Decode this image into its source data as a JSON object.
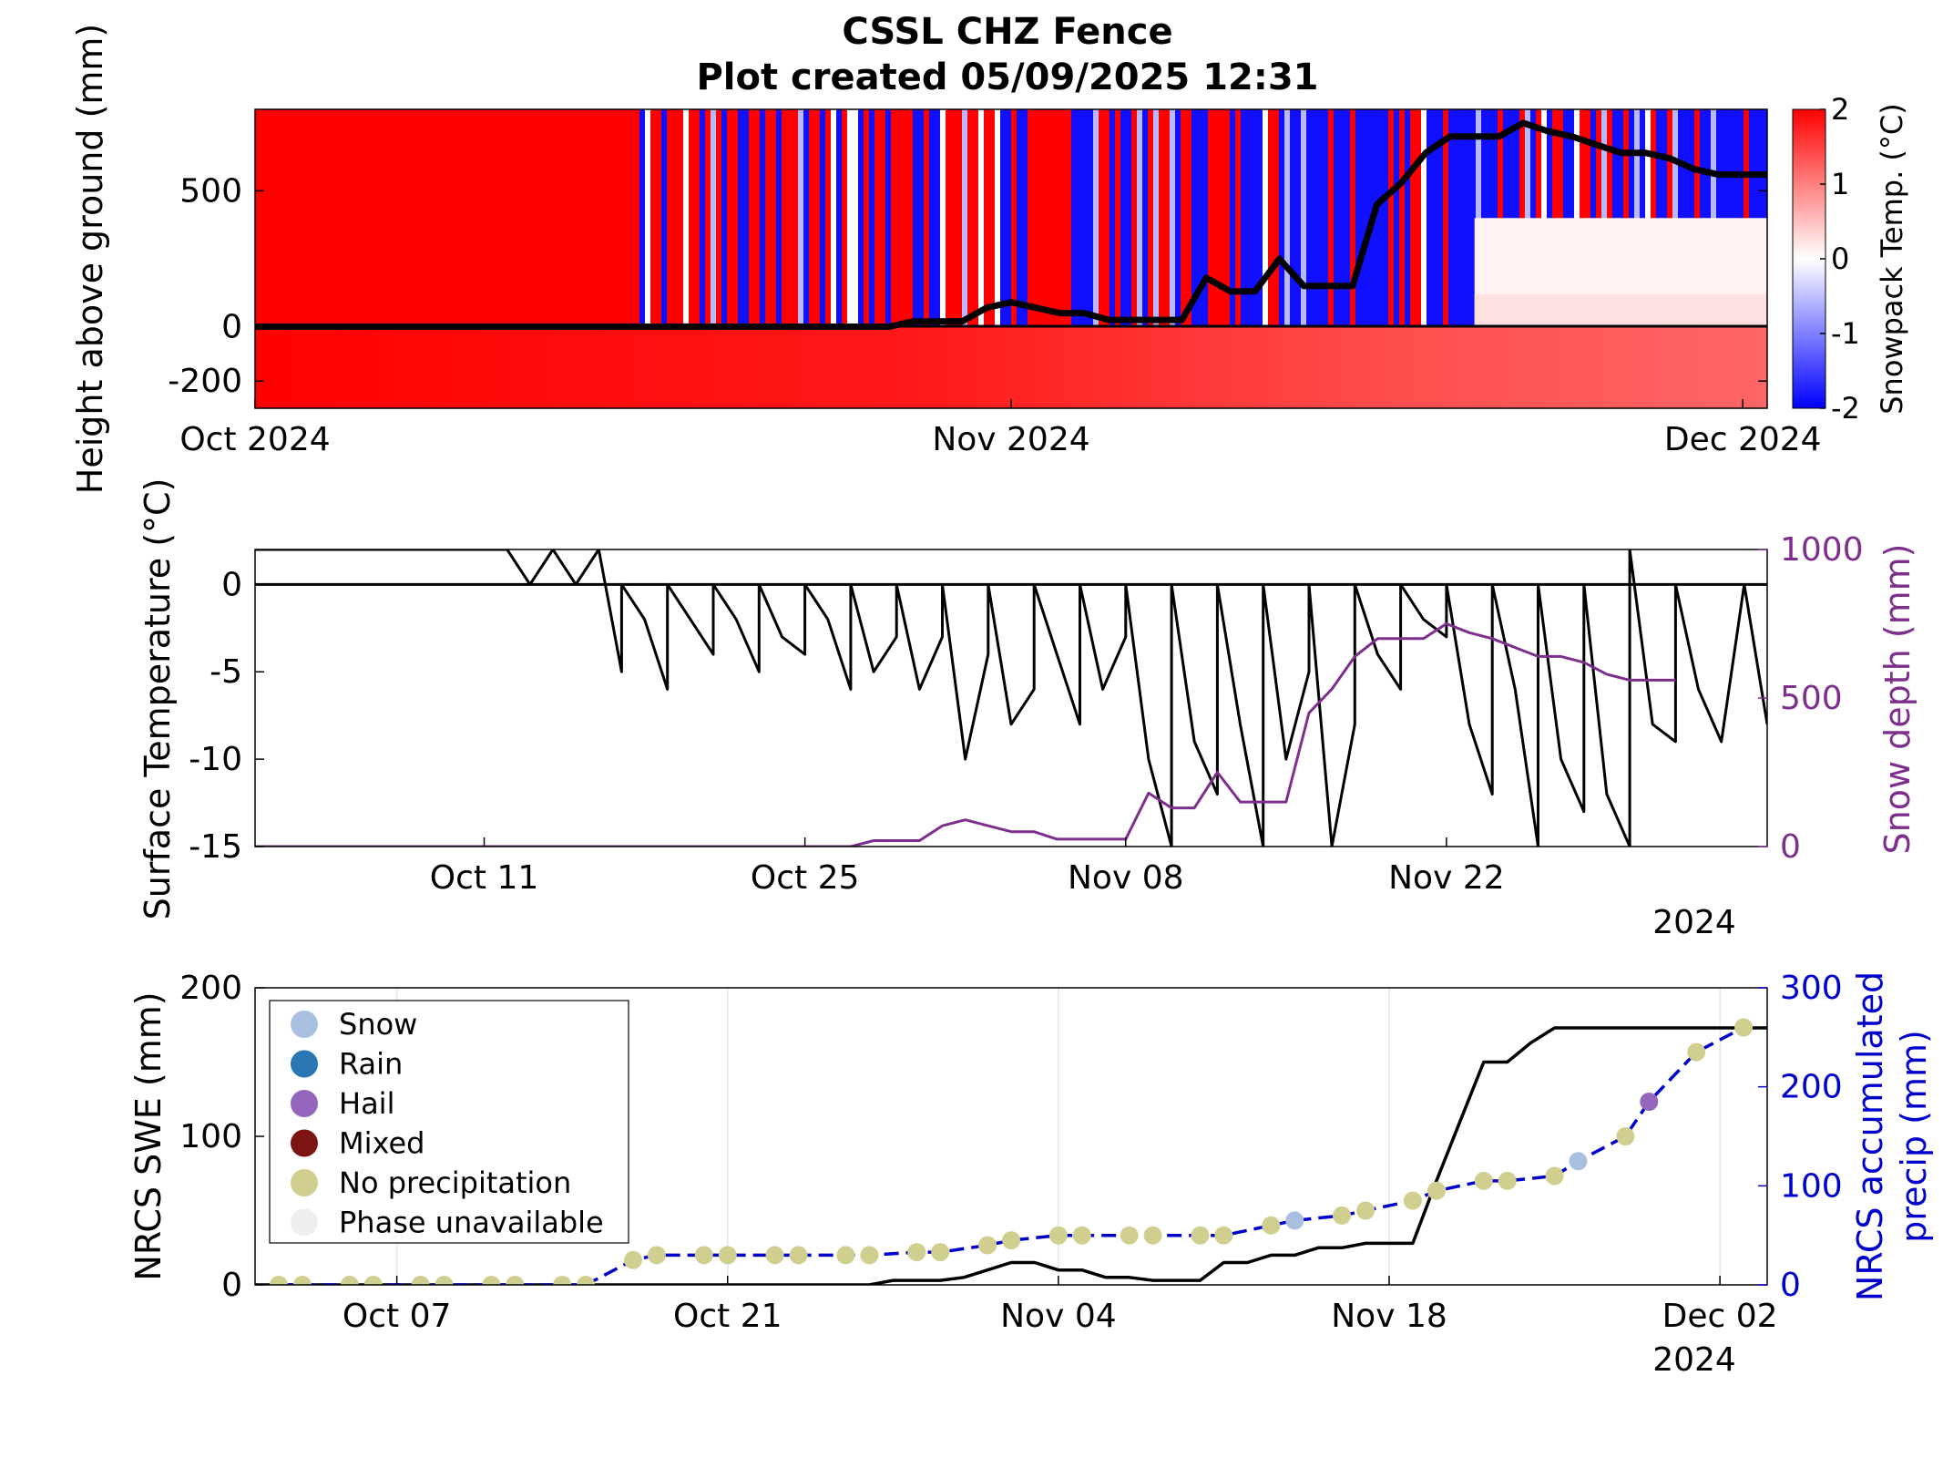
{
  "title": {
    "line1": "CSSL CHZ Fence",
    "line2": "Plot created 05/09/2025 12:31"
  },
  "chart_data": [
    {
      "type": "heatmap",
      "ylabel": "Height above ground (mm)",
      "yticks": [
        500,
        0,
        -200
      ],
      "ylim": [
        -300,
        800
      ],
      "xticks": [
        "Oct 2024",
        "Nov 2024",
        "Dec 2024"
      ],
      "xlim": [
        "2024-10-01",
        "2024-12-02"
      ],
      "colorbar": {
        "label": "Snowpack Temp. (°C)",
        "ticks": [
          2,
          1,
          0,
          -1,
          -2
        ],
        "range": [
          -2,
          2
        ],
        "colors": [
          "#0000ff",
          "#ffffff",
          "#ff0000"
        ]
      },
      "snow_depth_line": {
        "x": [
          "2024-10-01",
          "2024-10-27",
          "2024-10-28",
          "2024-10-30",
          "2024-10-31",
          "2024-11-01",
          "2024-11-02",
          "2024-11-03",
          "2024-11-04",
          "2024-11-05",
          "2024-11-06",
          "2024-11-07",
          "2024-11-08",
          "2024-11-09",
          "2024-11-10",
          "2024-11-11",
          "2024-11-12",
          "2024-11-13",
          "2024-11-14",
          "2024-11-15",
          "2024-11-16",
          "2024-11-17",
          "2024-11-18",
          "2024-11-19",
          "2024-11-20",
          "2024-11-21",
          "2024-11-22",
          "2024-11-23",
          "2024-11-24",
          "2024-11-25",
          "2024-11-26",
          "2024-11-27",
          "2024-11-28",
          "2024-11-29",
          "2024-11-30",
          "2024-12-01",
          "2024-12-02"
        ],
        "y": [
          0,
          0,
          20,
          20,
          70,
          90,
          70,
          50,
          50,
          25,
          25,
          25,
          25,
          180,
          130,
          130,
          250,
          150,
          150,
          150,
          450,
          530,
          640,
          700,
          700,
          700,
          750,
          720,
          700,
          670,
          640,
          640,
          620,
          580,
          560,
          560,
          560
        ]
      }
    },
    {
      "type": "line",
      "ylabel": "Surface Temperature (°C)",
      "y2label": "Snow depth (mm)",
      "yticks": [
        0,
        -5,
        -10,
        -15
      ],
      "ylim": [
        -15,
        2
      ],
      "y2ticks": [
        1000,
        500,
        0
      ],
      "y2lim": [
        0,
        1000
      ],
      "xticks": [
        "Oct 11",
        "Oct 25",
        "Nov 08",
        "Nov 22"
      ],
      "xlim": [
        "2024-10-01",
        "2024-12-06"
      ],
      "year_label": "2024",
      "colors": {
        "surface_temp": "#000000",
        "snow_depth": "#7e2f8e"
      },
      "snow_depth": {
        "x": [
          "2024-10-01",
          "2024-10-27",
          "2024-10-28",
          "2024-10-30",
          "2024-10-31",
          "2024-11-01",
          "2024-11-02",
          "2024-11-03",
          "2024-11-04",
          "2024-11-05",
          "2024-11-06",
          "2024-11-07",
          "2024-11-08",
          "2024-11-09",
          "2024-11-10",
          "2024-11-11",
          "2024-11-12",
          "2024-11-13",
          "2024-11-14",
          "2024-11-15",
          "2024-11-16",
          "2024-11-17",
          "2024-11-18",
          "2024-11-19",
          "2024-11-20",
          "2024-11-21",
          "2024-11-22",
          "2024-11-23",
          "2024-11-24",
          "2024-11-25",
          "2024-11-26",
          "2024-11-27",
          "2024-11-28",
          "2024-11-29",
          "2024-11-30",
          "2024-12-01",
          "2024-12-02"
        ],
        "y": [
          0,
          0,
          20,
          20,
          70,
          90,
          70,
          50,
          50,
          25,
          25,
          25,
          25,
          180,
          130,
          130,
          250,
          150,
          150,
          150,
          450,
          530,
          640,
          700,
          700,
          700,
          750,
          720,
          700,
          670,
          640,
          640,
          620,
          580,
          560,
          560,
          560
        ]
      },
      "surface_temp": {
        "x": [
          "2024-10-01",
          "2024-10-11",
          "2024-10-12",
          "2024-10-13",
          "2024-10-14",
          "2024-10-15",
          "2024-10-16",
          "2024-10-17",
          "2024-10-17",
          "2024-10-18",
          "2024-10-19",
          "2024-10-19",
          "2024-10-20",
          "2024-10-21",
          "2024-10-21",
          "2024-10-22",
          "2024-10-23",
          "2024-10-23",
          "2024-10-24",
          "2024-10-25",
          "2024-10-25",
          "2024-10-26",
          "2024-10-27",
          "2024-10-27",
          "2024-10-28",
          "2024-10-29",
          "2024-10-29",
          "2024-10-30",
          "2024-10-31",
          "2024-10-31",
          "2024-11-01",
          "2024-11-02",
          "2024-11-02",
          "2024-11-03",
          "2024-11-04",
          "2024-11-04",
          "2024-11-05",
          "2024-11-06",
          "2024-11-06",
          "2024-11-07",
          "2024-11-08",
          "2024-11-08",
          "2024-11-09",
          "2024-11-10",
          "2024-11-10",
          "2024-11-11",
          "2024-11-12",
          "2024-11-12",
          "2024-11-13",
          "2024-11-14",
          "2024-11-14",
          "2024-11-15",
          "2024-11-16",
          "2024-11-16",
          "2024-11-17",
          "2024-11-18",
          "2024-11-18",
          "2024-11-19",
          "2024-11-20",
          "2024-11-20",
          "2024-11-21",
          "2024-11-22",
          "2024-11-22",
          "2024-11-23",
          "2024-11-24",
          "2024-11-24",
          "2024-11-25",
          "2024-11-26",
          "2024-11-26",
          "2024-11-27",
          "2024-11-28",
          "2024-11-28",
          "2024-11-29",
          "2024-11-30",
          "2024-11-30",
          "2024-12-01",
          "2024-12-02",
          "2024-12-02",
          "2024-12-03",
          "2024-12-04",
          "2024-12-05",
          "2024-12-06"
        ],
        "y": [
          2,
          2,
          2,
          0,
          2,
          0,
          2,
          -5,
          0,
          -2,
          -6,
          0,
          -2,
          -4,
          0,
          -2,
          -5,
          0,
          -3,
          -4,
          0,
          -2,
          -6,
          0,
          -5,
          -3,
          0,
          -6,
          -3,
          0,
          -10,
          -4,
          0,
          -8,
          -6,
          0,
          -4,
          -8,
          0,
          -6,
          -3,
          0,
          -10,
          -15,
          0,
          -9,
          -12,
          0,
          -8,
          -15,
          0,
          -10,
          -5,
          0,
          -15,
          -8,
          0,
          -4,
          -6,
          0,
          -2,
          -3,
          0,
          -8,
          -12,
          0,
          -6,
          -15,
          0,
          -10,
          -13,
          0,
          -12,
          -15,
          2,
          -8,
          -9,
          0,
          -6,
          -9,
          0,
          -8
        ]
      }
    },
    {
      "type": "scatter",
      "ylabel": "NRCS SWE (mm)",
      "y2label_line1": "NRCS accumulated",
      "y2label_line2": "precip (mm)",
      "yticks": [
        200,
        100,
        0
      ],
      "ylim": [
        0,
        200
      ],
      "y2ticks": [
        300,
        200,
        100,
        0
      ],
      "y2lim": [
        0,
        300
      ],
      "xticks": [
        "Oct 07",
        "Oct 21",
        "Nov 04",
        "Nov 18",
        "Dec 02"
      ],
      "xlim": [
        "2024-10-01",
        "2024-12-04"
      ],
      "year_label": "2024",
      "legend": {
        "placement": "top-left",
        "entries": [
          {
            "label": "Snow",
            "color": "#a8bfe0"
          },
          {
            "label": "Rain",
            "color": "#2a77b4"
          },
          {
            "label": "Hail",
            "color": "#9467bd"
          },
          {
            "label": "Mixed",
            "color": "#7c1414"
          },
          {
            "label": "No precipitation",
            "color": "#d1cf8f"
          },
          {
            "label": "Phase unavailable",
            "color": "#efeff2"
          }
        ]
      },
      "swe": {
        "color": "#000000",
        "x": [
          "2024-10-01",
          "2024-10-27",
          "2024-10-28",
          "2024-10-30",
          "2024-10-31",
          "2024-11-01",
          "2024-11-02",
          "2024-11-03",
          "2024-11-04",
          "2024-11-05",
          "2024-11-06",
          "2024-11-07",
          "2024-11-08",
          "2024-11-09",
          "2024-11-10",
          "2024-11-11",
          "2024-11-12",
          "2024-11-13",
          "2024-11-14",
          "2024-11-15",
          "2024-11-16",
          "2024-11-17",
          "2024-11-18",
          "2024-11-19",
          "2024-11-20",
          "2024-11-21",
          "2024-11-22",
          "2024-11-23",
          "2024-11-24",
          "2024-11-25",
          "2024-12-04"
        ],
        "y": [
          0,
          0,
          3,
          3,
          5,
          10,
          15,
          15,
          10,
          10,
          5,
          5,
          3,
          3,
          3,
          15,
          15,
          20,
          20,
          25,
          25,
          28,
          28,
          28,
          70,
          110,
          150,
          150,
          163,
          173,
          173
        ]
      },
      "precip": {
        "color": "#0000cc",
        "x": [
          "2024-10-02",
          "2024-10-03",
          "2024-10-05",
          "2024-10-06",
          "2024-10-08",
          "2024-10-09",
          "2024-10-11",
          "2024-10-12",
          "2024-10-14",
          "2024-10-15",
          "2024-10-17",
          "2024-10-18",
          "2024-10-20",
          "2024-10-21",
          "2024-10-23",
          "2024-10-24",
          "2024-10-26",
          "2024-10-27",
          "2024-10-29",
          "2024-10-30",
          "2024-11-01",
          "2024-11-02",
          "2024-11-04",
          "2024-11-05",
          "2024-11-07",
          "2024-11-08",
          "2024-11-10",
          "2024-11-11",
          "2024-11-13",
          "2024-11-14",
          "2024-11-16",
          "2024-11-17",
          "2024-11-19",
          "2024-11-20",
          "2024-11-22",
          "2024-11-23",
          "2024-11-25",
          "2024-11-26",
          "2024-11-28",
          "2024-11-29",
          "2024-12-01",
          "2024-12-03"
        ],
        "y": [
          0,
          0,
          0,
          0,
          0,
          0,
          0,
          0,
          0,
          0,
          25,
          30,
          30,
          30,
          30,
          30,
          30,
          30,
          33,
          33,
          40,
          45,
          50,
          50,
          50,
          50,
          50,
          50,
          60,
          65,
          70,
          75,
          85,
          95,
          105,
          105,
          110,
          125,
          150,
          185,
          235,
          260
        ],
        "phase": [
          "No precipitation",
          "No precipitation",
          "No precipitation",
          "No precipitation",
          "No precipitation",
          "No precipitation",
          "No precipitation",
          "No precipitation",
          "No precipitation",
          "No precipitation",
          "No precipitation",
          "No precipitation",
          "No precipitation",
          "No precipitation",
          "No precipitation",
          "No precipitation",
          "No precipitation",
          "No precipitation",
          "No precipitation",
          "No precipitation",
          "No precipitation",
          "No precipitation",
          "No precipitation",
          "No precipitation",
          "No precipitation",
          "No precipitation",
          "No precipitation",
          "No precipitation",
          "No precipitation",
          "Snow",
          "No precipitation",
          "No precipitation",
          "No precipitation",
          "No precipitation",
          "No precipitation",
          "No precipitation",
          "No precipitation",
          "Snow",
          "No precipitation",
          "Hail",
          "No precipitation",
          "No precipitation"
        ]
      }
    }
  ]
}
